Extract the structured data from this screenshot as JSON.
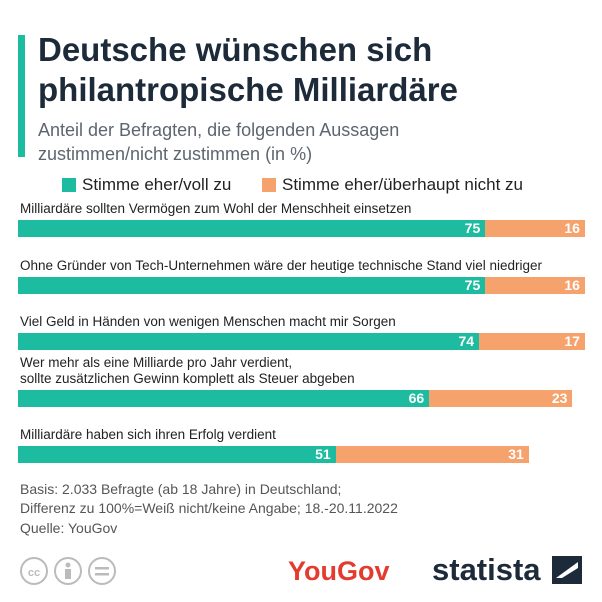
{
  "chart_data": {
    "type": "stacked-bar",
    "title": "Deutsche wünschen sich\nphilantropische Milliardäre",
    "subtitle": "Anteil der Befragten, die folgenden Aussagen\nzustimmen/nicht zustimmen (in %)",
    "categories": [
      "Milliardäre sollten Vermögen zum Wohl der Menschheit einsetzen",
      "Ohne Gründer von Tech-Unternehmen wäre der heutige technische Stand viel niedriger",
      "Viel Geld in Händen von wenigen Menschen macht mir Sorgen",
      "Wer mehr als eine Milliarde pro Jahr verdient,\nsollte zusätzlichen Gewinn komplett als Steuer abgeben",
      "Milliardäre haben sich ihren Erfolg verdient"
    ],
    "series": [
      {
        "name": "Stimme eher/voll zu",
        "color": "#1dbb9f",
        "values": [
          75,
          75,
          74,
          66,
          51
        ]
      },
      {
        "name": "Stimme eher/überhaupt nicht zu",
        "color": "#f5a26d",
        "values": [
          16,
          16,
          17,
          23,
          31
        ]
      }
    ],
    "footnotes": [
      "Basis: 2.033 Befragte (ab 18 Jahre) in Deutschland;\nDifferenz zu 100%=Weiß nicht/keine Angabe; 18.-20.11.2022",
      "Quelle: YouGov"
    ],
    "logos": [
      "YouGov",
      "statista"
    ]
  }
}
